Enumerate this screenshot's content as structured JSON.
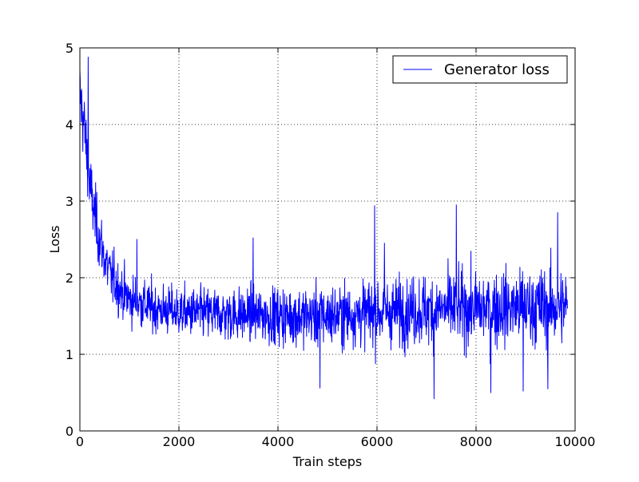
{
  "chart_data": {
    "type": "line",
    "title": "",
    "xlabel": "Train steps",
    "ylabel": "Loss",
    "xlim": [
      0,
      10000
    ],
    "ylim": [
      0,
      5
    ],
    "xticks": [
      0,
      2000,
      4000,
      6000,
      8000,
      10000
    ],
    "yticks": [
      0,
      1,
      2,
      3,
      4,
      5
    ],
    "xtick_labels": [
      "0",
      "2000",
      "4000",
      "6000",
      "8000",
      "10000"
    ],
    "ytick_labels": [
      "0",
      "1",
      "2",
      "3",
      "4",
      "5"
    ],
    "grid": true,
    "legend_position": "top-right",
    "series": [
      {
        "name": "Generator loss",
        "color": "#0000ff",
        "x_range": [
          0,
          9850
        ],
        "trend": [
          [
            0,
            4.4
          ],
          [
            100,
            3.9
          ],
          [
            200,
            3.2
          ],
          [
            300,
            2.8
          ],
          [
            400,
            2.5
          ],
          [
            500,
            2.25
          ],
          [
            600,
            2.05
          ],
          [
            800,
            1.85
          ],
          [
            1000,
            1.72
          ],
          [
            1500,
            1.6
          ],
          [
            2000,
            1.55
          ],
          [
            3000,
            1.52
          ],
          [
            4000,
            1.5
          ],
          [
            5000,
            1.5
          ],
          [
            6000,
            1.55
          ],
          [
            7000,
            1.58
          ],
          [
            8000,
            1.6
          ],
          [
            9000,
            1.62
          ],
          [
            9850,
            1.62
          ]
        ],
        "spread": [
          [
            0,
            0.45
          ],
          [
            500,
            0.35
          ],
          [
            1000,
            0.3
          ],
          [
            2000,
            0.3
          ],
          [
            4000,
            0.35
          ],
          [
            6000,
            0.4
          ],
          [
            8000,
            0.45
          ],
          [
            9850,
            0.48
          ]
        ],
        "extremes": [
          [
            170,
            4.88
          ],
          [
            1150,
            2.5
          ],
          [
            3500,
            2.52
          ],
          [
            5950,
            2.94
          ],
          [
            6150,
            2.45
          ],
          [
            7150,
            0.42
          ],
          [
            7600,
            2.95
          ],
          [
            8300,
            0.5
          ],
          [
            8950,
            0.52
          ],
          [
            9450,
            0.55
          ],
          [
            9650,
            2.85
          ],
          [
            4850,
            0.56
          ]
        ]
      }
    ]
  }
}
